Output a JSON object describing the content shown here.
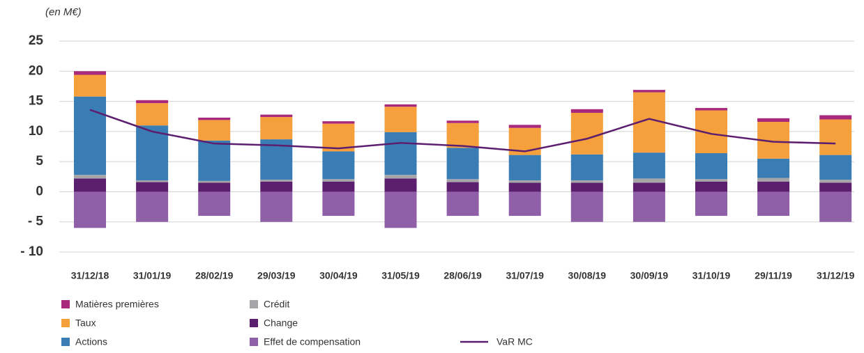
{
  "chart_data": {
    "type": "bar",
    "y_label": "(en M€)",
    "categories": [
      "31/12/18",
      "31/01/19",
      "28/02/19",
      "29/03/19",
      "30/04/19",
      "31/05/19",
      "28/06/19",
      "31/07/19",
      "30/08/19",
      "30/09/19",
      "31/10/19",
      "29/11/19",
      "31/12/19"
    ],
    "stacked": true,
    "series": [
      {
        "name": "Matières premières",
        "color": "#a8287c",
        "values": [
          0.6,
          0.5,
          0.4,
          0.4,
          0.4,
          0.4,
          0.4,
          0.5,
          0.6,
          0.4,
          0.4,
          0.6,
          0.7
        ]
      },
      {
        "name": "Taux",
        "color": "#f5a03c",
        "values": [
          3.6,
          3.7,
          3.4,
          3.7,
          4.6,
          4.2,
          4.1,
          4.5,
          6.9,
          10,
          7.1,
          6.1,
          5.9
        ]
      },
      {
        "name": "Actions",
        "color": "#3a7db5",
        "values": [
          13.0,
          9.1,
          6.7,
          6.7,
          4.6,
          7.1,
          5.2,
          4.2,
          4.3,
          4.3,
          4.3,
          3.2,
          4.1
        ]
      },
      {
        "name": "Crédit",
        "color": "#a6a6a8",
        "values": [
          0.6,
          0.3,
          0.3,
          0.3,
          0.4,
          0.6,
          0.5,
          0.4,
          0.4,
          0.7,
          0.4,
          0.6,
          0.5
        ]
      },
      {
        "name": "Change",
        "color": "#5c1e6e",
        "values": [
          2.2,
          1.6,
          1.5,
          1.7,
          1.7,
          2.2,
          1.6,
          1.5,
          1.5,
          1.5,
          1.7,
          1.7,
          1.5
        ]
      },
      {
        "name": "Effet de compensation",
        "color": "#8f5fa8",
        "values": [
          -6,
          -5,
          -4,
          -5,
          -4,
          -6,
          -4,
          -4,
          -5,
          -5,
          -4,
          -4,
          -5
        ]
      },
      {
        "name": "VaR MC",
        "color": "#5c1e6e",
        "type": "line",
        "values": [
          13.6,
          10,
          8,
          7.7,
          7.2,
          8.1,
          7.6,
          6.7,
          8.8,
          12.1,
          9.6,
          8.3,
          8
        ]
      }
    ],
    "ylim": [
      -10,
      25
    ],
    "yticks": [
      {
        "value": -10,
        "label": "- 10"
      },
      {
        "value": -5,
        "label": "- 5"
      },
      0,
      5,
      10,
      15,
      20,
      25
    ],
    "grid": true
  }
}
